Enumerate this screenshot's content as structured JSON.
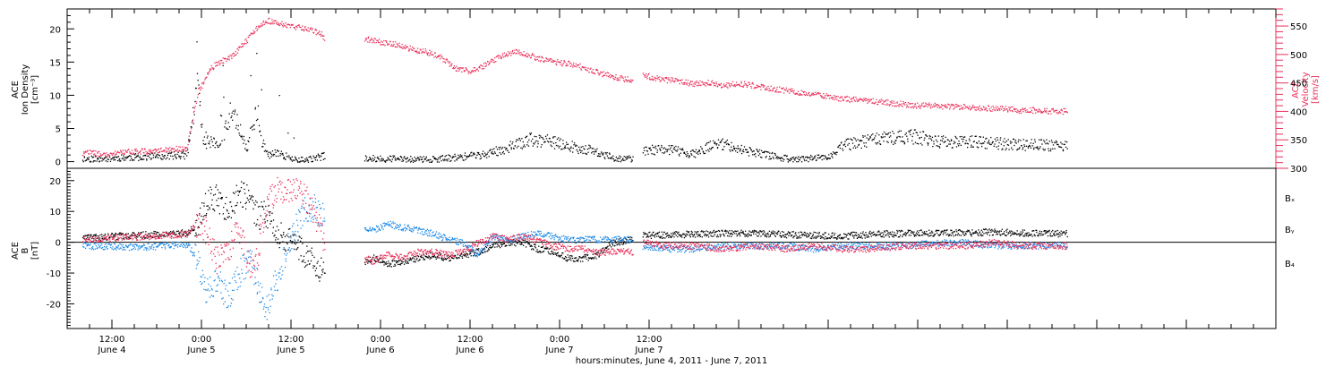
{
  "chart_data": [
    {
      "type": "scatter",
      "panel": "top",
      "left_axis": {
        "label_lines": [
          "ACE",
          "Ion Density",
          "[cm⁻³]"
        ],
        "ticks": [
          0,
          5,
          10,
          15,
          20
        ],
        "range": [
          -1,
          23
        ],
        "color": "#000000"
      },
      "right_axis": {
        "label_lines": [
          "ACE",
          "Velocity",
          "[km/s]"
        ],
        "ticks": [
          300,
          350,
          400,
          450,
          500,
          550
        ],
        "range": [
          300,
          580
        ],
        "color": "#e8305a"
      },
      "gaps": [
        [
          40.5,
          45.8
        ],
        [
          81.8,
          83.1
        ]
      ],
      "series": [
        {
          "axis": "left",
          "color": "#000000",
          "segments": [
            {
              "x": [
                8,
                10,
                12,
                14,
                16,
                18,
                20,
                22,
                23.5,
                24.2,
                25,
                26.5,
                28,
                30,
                31.4,
                32,
                33,
                34,
                36,
                38,
                40,
                40.5
              ],
              "y": [
                0.5,
                0.5,
                0.6,
                0.7,
                0.8,
                0.9,
                1.0,
                1.1,
                12,
                3,
                3,
                2.5,
                8,
                2,
                8,
                3,
                1,
                1.5,
                0.5,
                0.3,
                0.8,
                1.0
              ]
            },
            {
              "x": [
                45.8,
                48,
                50,
                52,
                54,
                56,
                58,
                60,
                62,
                64,
                66,
                68,
                70,
                72,
                74,
                76,
                78,
                80,
                81.8
              ],
              "y": [
                0.6,
                0.5,
                0.5,
                0.4,
                0.4,
                0.5,
                0.7,
                0.9,
                1.2,
                1.8,
                2.6,
                3.4,
                3.2,
                2.8,
                2.2,
                1.8,
                1.0,
                0.5,
                0.5
              ]
            },
            {
              "x": [
                83.1,
                84,
                86,
                88,
                90,
                92,
                94,
                96,
                98,
                100,
                102,
                104,
                106,
                108,
                110,
                112,
                114,
                116,
                118,
                120,
                122,
                124,
                126,
                128,
                130,
                132,
                134,
                136,
                138,
                140
              ],
              "y": [
                1.5,
                1.8,
                2.0,
                1.6,
                1.2,
                2.4,
                2.8,
                2.0,
                1.4,
                1.0,
                0.6,
                0.4,
                0.6,
                0.7,
                2.5,
                3.0,
                3.4,
                3.6,
                3.8,
                3.8,
                3.2,
                3.0,
                3.1,
                3.0,
                2.9,
                2.7,
                2.6,
                2.6,
                2.5,
                2.4
              ]
            }
          ]
        },
        {
          "axis": "right",
          "color": "#e8305a",
          "segments": [
            {
              "x": [
                8,
                10,
                12,
                14,
                16,
                18,
                20,
                22,
                23.5,
                24,
                25,
                26.5,
                28,
                30,
                31.4,
                32,
                33,
                34,
                35,
                36,
                38,
                40,
                40.5
              ],
              "y": [
                328,
                327,
                326,
                329,
                331,
                332,
                334,
                336,
                436,
                445,
                475,
                488,
                497,
                525,
                548,
                556,
                560,
                557,
                553,
                549,
                547,
                537,
                529
              ]
            },
            {
              "x": [
                45.8,
                48,
                50,
                52,
                54,
                56,
                58,
                60,
                62,
                64,
                66,
                68,
                70,
                72,
                74,
                76,
                78,
                80,
                81.8
              ],
              "y": [
                529,
                522,
                519,
                511,
                506,
                496,
                477,
                471,
                482,
                497,
                506,
                499,
                491,
                486,
                483,
                473,
                466,
                459,
                456
              ]
            },
            {
              "x": [
                83.1,
                84,
                86,
                88,
                90,
                92,
                94,
                96,
                98,
                100,
                102,
                104,
                106,
                108,
                110,
                112,
                114,
                116,
                118,
                120,
                122,
                124,
                126,
                128,
                130,
                132,
                134,
                136,
                138,
                140
              ],
              "y": [
                466,
                462,
                456,
                454,
                449,
                451,
                446,
                450,
                446,
                441,
                438,
                434,
                431,
                427,
                423,
                421,
                419,
                416,
                414,
                411,
                411,
                409,
                409,
                407,
                406,
                405,
                402,
                403,
                401,
                401
              ]
            }
          ]
        }
      ]
    },
    {
      "type": "line",
      "panel": "bottom",
      "left_axis": {
        "label_lines": [
          "ACE",
          "B",
          "[nT]"
        ],
        "ticks": [
          -20,
          -10,
          0,
          10,
          20
        ],
        "range": [
          -28,
          24
        ]
      },
      "zero_line": true,
      "legend": [
        "Bₓ",
        "Bᵧ",
        "B₄"
      ],
      "legend_placement": "right",
      "gaps": [
        [
          40.5,
          45.8
        ],
        [
          81.8,
          83.1
        ]
      ],
      "series": [
        {
          "name": "Bₓ",
          "color": "#000000",
          "segments": [
            {
              "x": [
                8,
                12,
                16,
                20,
                22,
                23.5,
                24.5,
                26,
                27.5,
                29,
                30.5,
                31.5,
                32.5,
                34,
                36,
                37.5,
                39,
                40.5
              ],
              "y": [
                1.5,
                2.0,
                2.5,
                3.0,
                3.2,
                6,
                13,
                15,
                10,
                16,
                14,
                8,
                10,
                3,
                0,
                -3,
                -6,
                -10
              ]
            },
            {
              "x": [
                45.8,
                47,
                49,
                51,
                53,
                55,
                57,
                59,
                61,
                63,
                65,
                67,
                69,
                71,
                73,
                75,
                77,
                79,
                81.8
              ],
              "y": [
                -6,
                -5,
                -7,
                -6,
                -5,
                -4,
                -5,
                -4,
                -3,
                -1,
                0,
                0,
                -2,
                -3,
                -5,
                -5,
                -4,
                0,
                1
              ]
            },
            {
              "x": [
                83.1,
                86,
                90,
                94,
                98,
                102,
                106,
                110,
                114,
                118,
                122,
                126,
                130,
                134,
                138,
                140
              ],
              "y": [
                2.5,
                2.5,
                2.8,
                3.0,
                3.0,
                2.6,
                2.4,
                2.2,
                2.8,
                3.0,
                3.1,
                3.2,
                3.4,
                3.2,
                3.0,
                3.0
              ]
            }
          ]
        },
        {
          "name": "Bᵧ",
          "color": "#1d8ae8",
          "segments": [
            {
              "x": [
                8,
                12,
                16,
                20,
                22,
                23.5,
                24.5,
                26,
                27.5,
                29,
                30.5,
                31.5,
                32.5,
                34,
                36,
                37.5,
                39,
                40.5
              ],
              "y": [
                -1.0,
                -1.2,
                -1.5,
                -0.8,
                -0.5,
                -6,
                -15,
                -12,
                -18,
                -10,
                -5,
                -14,
                -22,
                -12,
                2,
                10,
                12,
                8
              ]
            },
            {
              "x": [
                45.8,
                47,
                49,
                51,
                53,
                55,
                57,
                59,
                61,
                63,
                65,
                67,
                69,
                71,
                73,
                75,
                77,
                79,
                81.8
              ],
              "y": [
                5,
                4,
                6,
                5,
                4,
                3,
                1,
                0,
                -4,
                2,
                1,
                2,
                3,
                2,
                1,
                1,
                1,
                1,
                1
              ]
            },
            {
              "x": [
                83.1,
                86,
                90,
                94,
                98,
                102,
                106,
                110,
                114,
                118,
                122,
                126,
                130,
                134,
                138,
                140
              ],
              "y": [
                -1,
                -2,
                -2,
                -1,
                -1,
                -1,
                -2,
                -1,
                -1,
                -1,
                0,
                0,
                -1,
                -1,
                -1,
                -1
              ]
            }
          ]
        },
        {
          "name": "B₄",
          "color": "#e8305a",
          "segments": [
            {
              "x": [
                8,
                12,
                16,
                20,
                22,
                23.5,
                24.5,
                26,
                27.5,
                29,
                30.5,
                31.5,
                32.5,
                34,
                36,
                37.5,
                39,
                40.5
              ],
              "y": [
                1.0,
                1.5,
                2.0,
                2.5,
                2.8,
                6,
                4,
                -6,
                -2,
                4,
                -8,
                -4,
                12,
                17,
                18,
                16,
                10,
                0
              ]
            },
            {
              "x": [
                45.8,
                47,
                49,
                51,
                53,
                55,
                57,
                59,
                61,
                63,
                65,
                67,
                69,
                71,
                73,
                75,
                77,
                79,
                81.8
              ],
              "y": [
                -5,
                -6,
                -4,
                -5,
                -3,
                -3,
                -4,
                -3,
                0,
                2,
                1,
                2,
                1,
                -1,
                -2,
                -2,
                -3,
                -3,
                -3
              ]
            },
            {
              "x": [
                83.1,
                86,
                90,
                94,
                98,
                102,
                106,
                110,
                114,
                118,
                122,
                126,
                130,
                134,
                138,
                140
              ],
              "y": [
                0,
                -1,
                -1,
                -2,
                -1,
                -2,
                -1,
                -2,
                -2,
                -1,
                -1,
                -1,
                0,
                -1,
                -1,
                -1
              ]
            }
          ]
        }
      ]
    },
    {
      "type": "time_axis",
      "x_range": [
        6,
        168
      ],
      "major_ticks": [
        {
          "x": 12,
          "time": "12:00",
          "date": "June 4"
        },
        {
          "x": 24,
          "time": "0:00",
          "date": "June 5"
        },
        {
          "x": 36,
          "time": "12:00",
          "date": "June 5"
        },
        {
          "x": 48,
          "time": "0:00",
          "date": "June 6"
        },
        {
          "x": 60,
          "time": "12:00",
          "date": "June 6"
        },
        {
          "x": 72,
          "time": "0:00",
          "date": "June 7"
        },
        {
          "x": 84,
          "time": "12:00",
          "date": "June 7"
        }
      ],
      "xlabel": "hours:minutes, June  4, 2011 - June  7, 2011"
    }
  ]
}
